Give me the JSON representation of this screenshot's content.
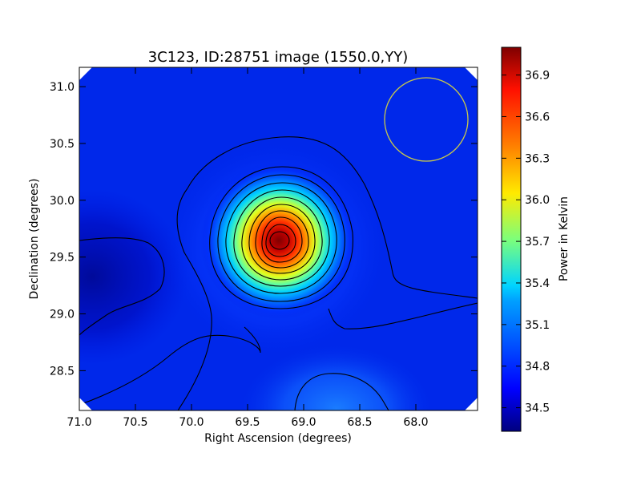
{
  "chart_data": {
    "type": "heatmap",
    "title": "3C123, ID:28751 image (1550.0,YY)",
    "xlabel": "Right Ascension (degrees)",
    "ylabel": "Declination (degrees)",
    "xlim": [
      71.0,
      67.45
    ],
    "ylim": [
      28.15,
      31.17
    ],
    "x_ticks": [
      "71.0",
      "70.5",
      "70.0",
      "69.5",
      "69.0",
      "68.5",
      "68.0"
    ],
    "y_ticks": [
      "28.5",
      "29.0",
      "29.5",
      "30.0",
      "30.5",
      "31.0"
    ],
    "colorbar": {
      "label": "Power in Kelvin",
      "range": [
        34.33,
        37.1
      ],
      "ticks": [
        "34.5",
        "34.8",
        "35.1",
        "35.4",
        "35.7",
        "36.0",
        "36.3",
        "36.6",
        "36.9"
      ],
      "colormap": "jet"
    },
    "source_peak": {
      "ra": 69.27,
      "dec": 29.67,
      "value": 37.1
    },
    "background_level": 34.75,
    "low_region": {
      "ra": 70.8,
      "dec": 29.3,
      "value": 34.4
    },
    "secondary_bright_region": {
      "ra": 68.6,
      "dec": 28.3,
      "value": 35.0
    },
    "beam_circle": {
      "ra": 68.0,
      "dec": 30.72,
      "radius_deg": 0.37,
      "color": "#c8c84a"
    },
    "contours": "black"
  }
}
